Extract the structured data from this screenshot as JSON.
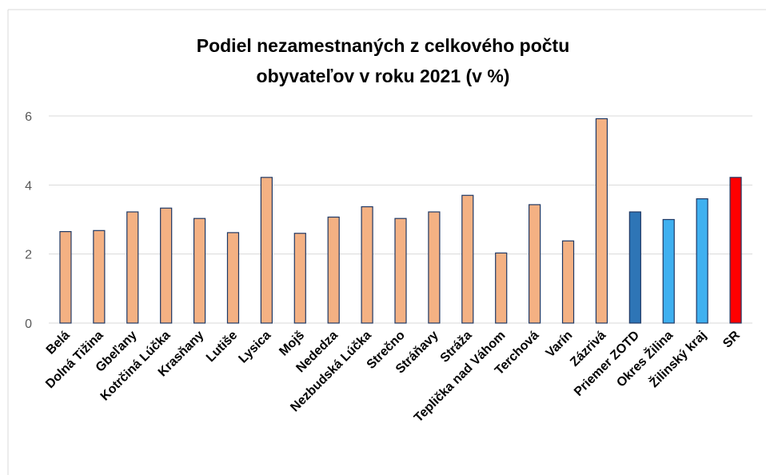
{
  "chart_data": {
    "type": "bar",
    "title": "Podiel nezamestnaných z celkového počtu obyvateľov v roku 2021 (v %)",
    "categories": [
      "Belá",
      "Dolná Tižina",
      "Gbeľany",
      "Kotrčiná Lúčka",
      "Krasňany",
      "Lutiše",
      "Lysica",
      "Mojš",
      "Nededza",
      "Nezbudská Lúčka",
      "Strečno",
      "Stráňavy",
      "Stráža",
      "Teplička nad Váhom",
      "Terchová",
      "Varín",
      "Zázrivá",
      "Priemer ZOTD",
      "Okres Žilina",
      "Žilinský kraj",
      "SR"
    ],
    "values": [
      2.65,
      2.68,
      3.22,
      3.33,
      3.03,
      2.62,
      4.22,
      2.6,
      3.07,
      3.37,
      3.03,
      3.22,
      3.7,
      2.03,
      3.43,
      2.38,
      5.92,
      3.22,
      3.0,
      3.6,
      4.22
    ],
    "colors": [
      "#f4b183",
      "#f4b183",
      "#f4b183",
      "#f4b183",
      "#f4b183",
      "#f4b183",
      "#f4b183",
      "#f4b183",
      "#f4b183",
      "#f4b183",
      "#f4b183",
      "#f4b183",
      "#f4b183",
      "#f4b183",
      "#f4b183",
      "#f4b183",
      "#f4b183",
      "#2e75b6",
      "#3fb0f0",
      "#3fb0f0",
      "#ff0000"
    ],
    "ylim": [
      0,
      6
    ],
    "yticks": [
      0,
      2,
      4,
      6
    ],
    "grid": true
  }
}
